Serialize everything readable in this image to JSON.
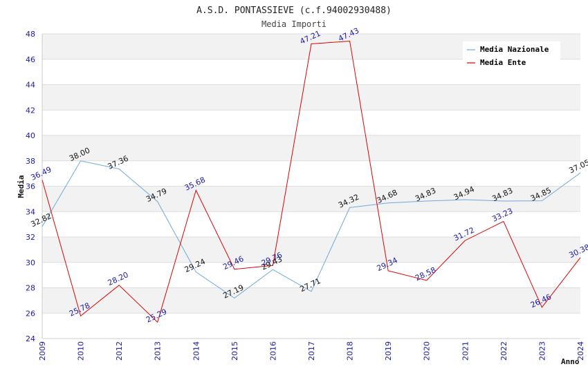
{
  "chart_data": {
    "type": "line",
    "title": "A.S.D. PONTASSIEVE (c.f.94002930488)",
    "subtitle": "Media Importi",
    "xlabel": "Anno",
    "ylabel": "Media",
    "ylim": [
      24,
      48
    ],
    "yticks": [
      24,
      26,
      28,
      30,
      32,
      34,
      36,
      38,
      40,
      42,
      44,
      46,
      48
    ],
    "categories": [
      "2009",
      "2010",
      "2012",
      "2013",
      "2014",
      "2015",
      "2016",
      "2017",
      "2018",
      "2019",
      "2020",
      "2021",
      "2022",
      "2023",
      "2024"
    ],
    "series": [
      {
        "name": "Media Nazionale",
        "color": "#6fa8dc",
        "values": [
          32.82,
          38.0,
          37.36,
          34.79,
          29.24,
          27.19,
          29.43,
          27.71,
          34.32,
          34.68,
          34.83,
          34.94,
          34.83,
          34.85,
          37.05
        ],
        "labels": [
          "32.82",
          "38.00",
          "37.36",
          "34.79",
          "29.24",
          "27.19",
          "29.43",
          "27.71",
          "34.32",
          "34.68",
          "34.83",
          "34.94",
          "34.83",
          "34.85",
          "37.05"
        ]
      },
      {
        "name": "Media Ente",
        "color": "#e00000",
        "values": [
          36.49,
          25.78,
          28.2,
          25.29,
          35.68,
          29.46,
          29.76,
          47.21,
          47.43,
          29.34,
          28.58,
          31.72,
          33.23,
          26.46,
          30.38
        ],
        "labels": [
          "36.49",
          "25.78",
          "28.20",
          "25.29",
          "35.68",
          "29.46",
          "29.76",
          "47.21",
          "47.43",
          "29.34",
          "28.58",
          "31.72",
          "33.23",
          "26.46",
          "30.38"
        ]
      }
    ],
    "legend_position": "top-right",
    "grid": true
  }
}
